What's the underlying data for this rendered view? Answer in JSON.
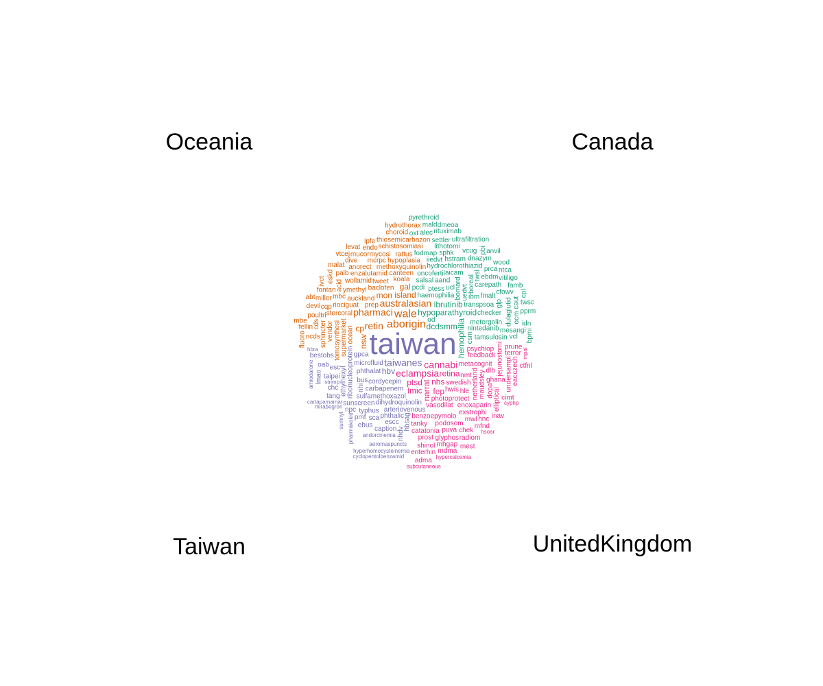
{
  "chart_data": {
    "type": "comparison_wordcloud",
    "group_labels": {
      "top_left": "Oceania",
      "top_right": "Canada",
      "bottom_left": "Taiwan",
      "bottom_right": "UnitedKingdom"
    },
    "colors": {
      "Oceania": "#D95F02",
      "Canada": "#1B9E77",
      "Taiwan": "#7570B3",
      "UnitedKingdom": "#E7298A"
    },
    "groups": [
      {
        "name": "Oceania",
        "words": [
          {
            "t": "aborigin",
            "w": 6
          },
          {
            "t": "australasian",
            "w": 5
          },
          {
            "t": "pharmaci",
            "w": 5
          },
          {
            "t": "retin",
            "w": 5
          },
          {
            "t": "wale",
            "w": 6
          },
          {
            "t": "island",
            "w": 4
          },
          {
            "t": "nsw",
            "w": 4
          },
          {
            "t": "cp",
            "w": 4
          },
          {
            "t": "ocean",
            "w": 3
          },
          {
            "t": "prep",
            "w": 3
          },
          {
            "t": "baclofen",
            "w": 3
          },
          {
            "t": "koala",
            "w": 3
          },
          {
            "t": "auckland",
            "w": 3
          },
          {
            "t": "supermarket",
            "w": 3
          },
          {
            "t": "tweet",
            "w": 3
          },
          {
            "t": "canteen",
            "w": 3
          },
          {
            "t": "methoxyquinolin",
            "w": 3
          },
          {
            "t": "riociguat",
            "w": 3
          },
          {
            "t": "tomosynthesi",
            "w": 3
          },
          {
            "t": "ymethyl",
            "w": 3
          },
          {
            "t": "stercoral",
            "w": 3
          },
          {
            "t": "enzalutamid",
            "w": 3
          },
          {
            "t": "hypoplasia",
            "w": 3
          },
          {
            "t": "vendor",
            "w": 3
          },
          {
            "t": "wollamid",
            "w": 3
          },
          {
            "t": "mbc",
            "w": 3
          },
          {
            "t": "rattus",
            "w": 3
          },
          {
            "t": "anorect",
            "w": 3
          },
          {
            "t": "sphincter",
            "w": 3
          },
          {
            "t": "mcrpc",
            "w": 3
          },
          {
            "t": "mucormycosi",
            "w": 3
          },
          {
            "t": "schistosomiasi",
            "w": 3
          },
          {
            "t": "thiosemicarbazon",
            "w": 3
          },
          {
            "t": "acid",
            "w": 3
          },
          {
            "t": "cqp",
            "w": 3
          },
          {
            "t": "poultri",
            "w": 3
          },
          {
            "t": "ncds",
            "w": 3
          },
          {
            "t": "miller",
            "w": 3
          },
          {
            "t": "cds",
            "w": 3
          },
          {
            "t": "fontan",
            "w": 3
          },
          {
            "t": "palb",
            "w": 3
          },
          {
            "t": "endo",
            "w": 3
          },
          {
            "t": "dive",
            "w": 3
          },
          {
            "t": "mon",
            "w": 4
          },
          {
            "t": "gal",
            "w": 4
          },
          {
            "t": "eskd",
            "w": 3
          },
          {
            "t": "devil",
            "w": 3
          },
          {
            "t": "malat",
            "w": 3
          },
          {
            "t": "fellin",
            "w": 3
          },
          {
            "t": "choroid",
            "w": 3
          },
          {
            "t": "ivct",
            "w": 3
          },
          {
            "t": "levat",
            "w": 3
          },
          {
            "t": "ipfe",
            "w": 3
          },
          {
            "t": "vtcej",
            "w": 3
          },
          {
            "t": "hydrothorax",
            "w": 3
          },
          {
            "t": "fluoro",
            "w": 3
          },
          {
            "t": "mbe",
            "w": 3
          },
          {
            "t": "abt",
            "w": 3
          }
        ]
      },
      {
        "name": "Canada",
        "words": [
          {
            "t": "hypoparathyroid",
            "w": 4
          },
          {
            "t": "hemophilia",
            "w": 4
          },
          {
            "t": "haemophilia",
            "w": 3
          },
          {
            "t": "dcdsmm",
            "w": 4
          },
          {
            "t": "ibrutinib",
            "w": 4
          },
          {
            "t": "pcdi",
            "w": 3
          },
          {
            "t": "csm",
            "w": 3
          },
          {
            "t": "ptess",
            "w": 3
          },
          {
            "t": "salsal",
            "w": 3
          },
          {
            "t": "nintedanib",
            "w": 3
          },
          {
            "t": "oncofertil",
            "w": 3
          },
          {
            "t": "bomard",
            "w": 3
          },
          {
            "t": "transpsoa",
            "w": 3
          },
          {
            "t": "aand",
            "w": 3
          },
          {
            "t": "metergolin",
            "w": 3
          },
          {
            "t": "tamsulosin",
            "w": 3
          },
          {
            "t": "uedvt",
            "w": 3
          },
          {
            "t": "hydrochlorothiazid",
            "w": 3
          },
          {
            "t": "checker",
            "w": 3
          },
          {
            "t": "aicam",
            "w": 3
          },
          {
            "t": "ibm",
            "w": 3
          },
          {
            "t": "boreal",
            "w": 3
          },
          {
            "t": "iiedvt",
            "w": 3
          },
          {
            "t": "fodmap",
            "w": 3
          },
          {
            "t": "fmalt",
            "w": 3
          },
          {
            "t": "carepath",
            "w": 3
          },
          {
            "t": "twsl",
            "w": 3
          },
          {
            "t": "hstram",
            "w": 3
          },
          {
            "t": "sphk",
            "w": 3
          },
          {
            "t": "mesangi",
            "w": 3
          },
          {
            "t": "lithotomi",
            "w": 3
          },
          {
            "t": "dulaglutid",
            "w": 3
          },
          {
            "t": "ebdm",
            "w": 3
          },
          {
            "t": "dnazym",
            "w": 3
          },
          {
            "t": "settler",
            "w": 3
          },
          {
            "t": "cfowv",
            "w": 3
          },
          {
            "t": "ocm",
            "w": 3
          },
          {
            "t": "od",
            "w": 3
          },
          {
            "t": "vcug",
            "w": 3
          },
          {
            "t": "prca",
            "w": 3
          },
          {
            "t": "ucl",
            "w": 3
          },
          {
            "t": "glp",
            "w": 3
          },
          {
            "t": "alec",
            "w": 3
          },
          {
            "t": "vitiligo",
            "w": 3
          },
          {
            "t": "rituximab",
            "w": 3
          },
          {
            "t": "ultrafiltration",
            "w": 3
          },
          {
            "t": "caut",
            "w": 3
          },
          {
            "t": "vcl",
            "w": 3
          },
          {
            "t": "oxt",
            "w": 3
          },
          {
            "t": "ntca",
            "w": 3
          },
          {
            "t": "mald",
            "w": 3
          },
          {
            "t": "pbi",
            "w": 3
          },
          {
            "t": "idn",
            "w": 3
          },
          {
            "t": "famb",
            "w": 3
          },
          {
            "t": "pprm",
            "w": 3
          },
          {
            "t": "wood",
            "w": 3
          },
          {
            "t": "bpmi",
            "w": 3
          },
          {
            "t": "dmeoa",
            "w": 3
          },
          {
            "t": "pyrethroid",
            "w": 3
          },
          {
            "t": "twsc",
            "w": 3
          },
          {
            "t": "anvil",
            "w": 3
          },
          {
            "t": "cpl",
            "w": 3
          }
        ]
      },
      {
        "name": "Taiwan",
        "words": [
          {
            "t": "taiwan",
            "w": 14
          },
          {
            "t": "taiwanes",
            "w": 5
          },
          {
            "t": "cordycepin",
            "w": 3
          },
          {
            "t": "microfluid",
            "w": 3
          },
          {
            "t": "carbapenem",
            "w": 3
          },
          {
            "t": "sulfamethoxazol",
            "w": 3
          },
          {
            "t": "ribonucleoprotein",
            "w": 3
          },
          {
            "t": "dihydroquinolin",
            "w": 3
          },
          {
            "t": "phthalat",
            "w": 3
          },
          {
            "t": "arteriovenous",
            "w": 3
          },
          {
            "t": "phthalic",
            "w": 3
          },
          {
            "t": "ethylhexyl",
            "w": 3
          },
          {
            "t": "hbv",
            "w": 4
          },
          {
            "t": "sunscreen",
            "w": 3
          },
          {
            "t": "gpca",
            "w": 3
          },
          {
            "t": "typhus",
            "w": 3
          },
          {
            "t": "bus",
            "w": 3
          },
          {
            "t": "hbsag",
            "w": 3
          },
          {
            "t": "escc",
            "w": 3
          },
          {
            "t": "esc",
            "w": 3
          },
          {
            "t": "sca",
            "w": 3
          },
          {
            "t": "caption",
            "w": 3
          },
          {
            "t": "nhi",
            "w": 3
          },
          {
            "t": "taipei",
            "w": 3
          },
          {
            "t": "bestobs",
            "w": 3
          },
          {
            "t": "chc",
            "w": 3
          },
          {
            "t": "pmf",
            "w": 3
          },
          {
            "t": "nhdv",
            "w": 3
          },
          {
            "t": "oab",
            "w": 3
          },
          {
            "t": "npc",
            "w": 3
          },
          {
            "t": "ebus",
            "w": 3
          },
          {
            "t": "tang",
            "w": 3
          },
          {
            "t": "lmao",
            "w": 3
          },
          {
            "t": "pharmakokid",
            "w": 2
          },
          {
            "t": "andorcinemia",
            "w": 2
          },
          {
            "t": "aeromaspuncts",
            "w": 2
          },
          {
            "t": "cartapamamar",
            "w": 2
          },
          {
            "t": "mirabegron",
            "w": 2
          },
          {
            "t": "amiodarone",
            "w": 2
          },
          {
            "t": "hyperhomocysteinemia",
            "w": 2
          },
          {
            "t": "cyclopentolbenzamid",
            "w": 2
          },
          {
            "t": "strimp",
            "w": 2
          },
          {
            "t": "hbra",
            "w": 2
          },
          {
            "t": "sumnyl",
            "w": 2
          }
        ]
      },
      {
        "name": "UnitedKingdom",
        "words": [
          {
            "t": "eclampsia",
            "w": 5
          },
          {
            "t": "cannabi",
            "w": 5
          },
          {
            "t": "ptsd",
            "w": 4
          },
          {
            "t": "narrat",
            "w": 4
          },
          {
            "t": "retina",
            "w": 4
          },
          {
            "t": "nhs",
            "w": 4
          },
          {
            "t": "lmic",
            "w": 4
          },
          {
            "t": "fep",
            "w": 4
          },
          {
            "t": "swedish",
            "w": 3
          },
          {
            "t": "photoprotect",
            "w": 3
          },
          {
            "t": "metacognit",
            "w": 3
          },
          {
            "t": "vasodilat",
            "w": 3
          },
          {
            "t": "netherland",
            "w": 3
          },
          {
            "t": "benzoepymolo",
            "w": 3
          },
          {
            "t": "psychiop",
            "w": 3
          },
          {
            "t": "hwis",
            "w": 3
          },
          {
            "t": "feedback",
            "w": 3
          },
          {
            "t": "maudsley",
            "w": 3
          },
          {
            "t": "tanky",
            "w": 3
          },
          {
            "t": "enoxaparin",
            "w": 3
          },
          {
            "t": "podosom",
            "w": 3
          },
          {
            "t": "catatonia",
            "w": 3
          },
          {
            "t": "jejunostomi",
            "w": 3
          },
          {
            "t": "exstrophi",
            "w": 3
          },
          {
            "t": "ghana",
            "w": 3
          },
          {
            "t": "prost",
            "w": 3
          },
          {
            "t": "puva",
            "w": 3
          },
          {
            "t": "dopa",
            "w": 3
          },
          {
            "t": "mwl",
            "w": 3
          },
          {
            "t": "shinol",
            "w": 3
          },
          {
            "t": "glyphos",
            "w": 3
          },
          {
            "t": "terror",
            "w": 3
          },
          {
            "t": "undersampl",
            "w": 3
          },
          {
            "t": "prune",
            "w": 3
          },
          {
            "t": "chek",
            "w": 3
          },
          {
            "t": "nmt",
            "w": 3
          },
          {
            "t": "mhgap",
            "w": 3
          },
          {
            "t": "elliptical",
            "w": 3
          },
          {
            "t": "enterhin",
            "w": 3
          },
          {
            "t": "hle",
            "w": 3
          },
          {
            "t": "hnc",
            "w": 3
          },
          {
            "t": "mfnd",
            "w": 3
          },
          {
            "t": "czech",
            "w": 3
          },
          {
            "t": "radiom",
            "w": 3
          },
          {
            "t": "mdma",
            "w": 3
          },
          {
            "t": "dlb",
            "w": 3
          },
          {
            "t": "cimt",
            "w": 3
          },
          {
            "t": "eac",
            "w": 3
          },
          {
            "t": "adma",
            "w": 3
          },
          {
            "t": "inav",
            "w": 3
          },
          {
            "t": "mest",
            "w": 3
          },
          {
            "t": "ctfnl",
            "w": 3
          },
          {
            "t": "hypercalcemia",
            "w": 2
          },
          {
            "t": "hsoar",
            "w": 2
          },
          {
            "t": "cyphp",
            "w": 2
          },
          {
            "t": "subcutaneous",
            "w": 2
          },
          {
            "t": "mpal",
            "w": 2
          }
        ]
      }
    ]
  }
}
